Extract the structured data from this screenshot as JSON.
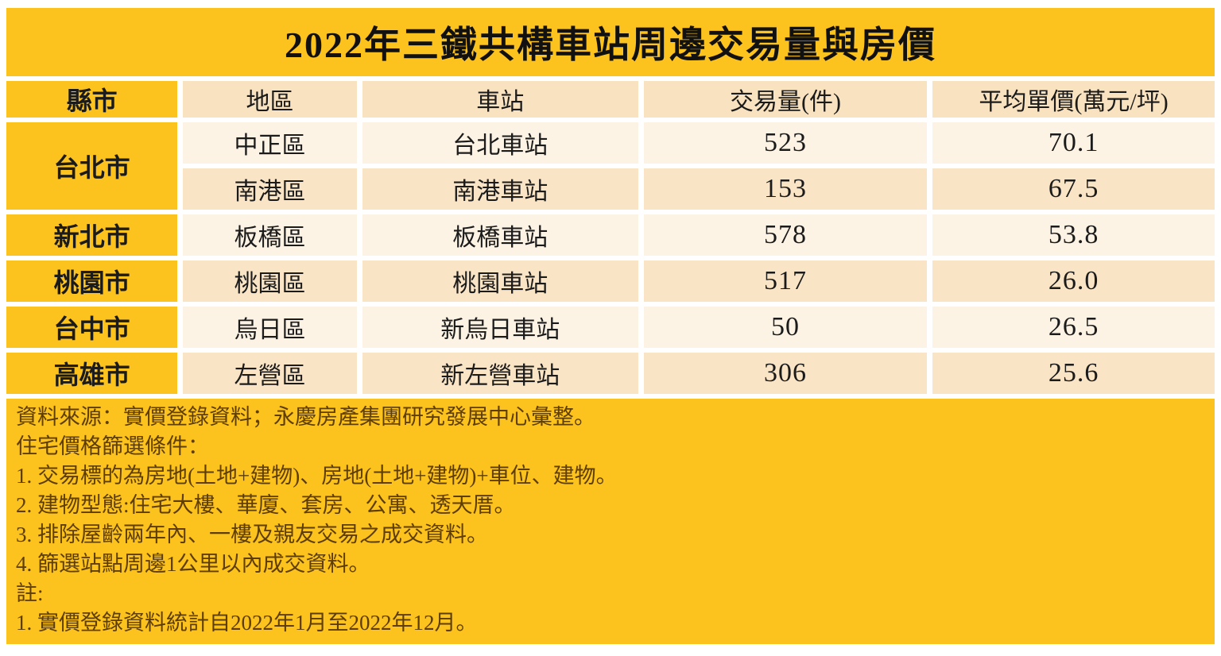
{
  "title": "2022年三鐵共構車站周邊交易量與房價",
  "table": {
    "columns": {
      "city": "縣市",
      "district": "地區",
      "station": "車站",
      "volume": "交易量(件)",
      "price": "平均單價(萬元/坪)"
    },
    "rows": [
      {
        "city": "台北市",
        "district": "中正區",
        "station": "台北車站",
        "volume": "523",
        "price": "70.1"
      },
      {
        "district": "南港區",
        "station": "南港車站",
        "volume": "153",
        "price": "67.5"
      },
      {
        "city": "新北市",
        "district": "板橋區",
        "station": "板橋車站",
        "volume": "578",
        "price": "53.8"
      },
      {
        "city": "桃園市",
        "district": "桃園區",
        "station": "桃園車站",
        "volume": "517",
        "price": "26.0"
      },
      {
        "city": "台中市",
        "district": "烏日區",
        "station": "新烏日車站",
        "volume": "50",
        "price": "26.5"
      },
      {
        "city": "高雄市",
        "district": "左營區",
        "station": "新左營車站",
        "volume": "306",
        "price": "25.6"
      }
    ]
  },
  "notes": {
    "lines": [
      "資料來源：實價登錄資料；永慶房產集團研究發展中心彙整。",
      "住宅價格篩選條件：",
      "1. 交易標的為房地(土地+建物)、房地(土地+建物)+車位、建物。",
      "2. 建物型態:住宅大樓、華廈、套房、公寓、透天厝。",
      "3. 排除屋齡兩年內、一樓及親友交易之成交資料。",
      "4. 篩選站點周邊1公里以內成交資料。",
      "註:",
      "1. 實價登錄資料統計自2022年1月至2022年12月。"
    ]
  },
  "colors": {
    "amber": "#FCC21E",
    "header_peach": "#F9E2BF",
    "row_cream": "#FDF3E4",
    "row_peach": "#FAE4C6",
    "text_dark": "#1b1b1b",
    "note_text": "#5e3e00"
  },
  "chart_data": {
    "type": "table",
    "title": "2022年三鐵共構車站周邊交易量與房價",
    "columns": [
      "縣市",
      "地區",
      "車站",
      "交易量(件)",
      "平均單價(萬元/坪)"
    ],
    "rows": [
      [
        "台北市",
        "中正區",
        "台北車站",
        523,
        70.1
      ],
      [
        "台北市",
        "南港區",
        "南港車站",
        153,
        67.5
      ],
      [
        "新北市",
        "板橋區",
        "板橋車站",
        578,
        53.8
      ],
      [
        "桃園市",
        "桃園區",
        "桃園車站",
        517,
        26.0
      ],
      [
        "台中市",
        "烏日區",
        "新烏日車站",
        50,
        26.5
      ],
      [
        "高雄市",
        "左營區",
        "新左營車站",
        306,
        25.6
      ]
    ],
    "source": "實價登錄資料；永慶房產集團研究發展中心彙整"
  }
}
